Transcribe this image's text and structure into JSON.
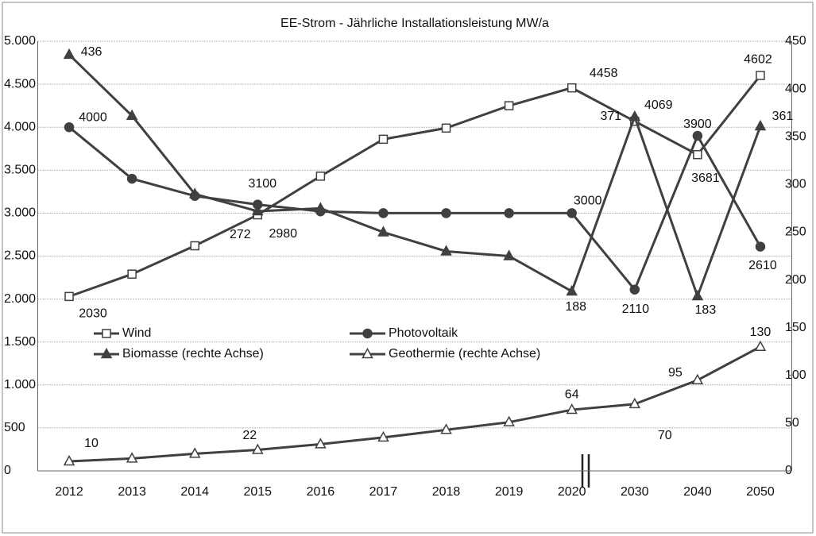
{
  "chart_data": {
    "type": "line",
    "title": "EE-Strom - Jährliche Installationsleistung  MW/a",
    "categories": [
      "2012",
      "2013",
      "2014",
      "2015",
      "2016",
      "2017",
      "2018",
      "2019",
      "2020",
      "2030",
      "2040",
      "2050"
    ],
    "ylim": [
      0,
      5000
    ],
    "yticks": [
      0,
      500,
      {
        "value": 1000,
        "label": "1.000"
      },
      {
        "value": 1500,
        "label": "1.500"
      },
      {
        "value": 2000,
        "label": "2.000"
      },
      {
        "value": 2500,
        "label": "2.500"
      },
      {
        "value": 3000,
        "label": "3.000"
      },
      {
        "value": 3500,
        "label": "3.500"
      },
      {
        "value": 4000,
        "label": "4.000"
      },
      {
        "value": 4500,
        "label": "4.500"
      },
      {
        "value": 5000,
        "label": "5.000"
      }
    ],
    "y2lim": [
      0,
      450
    ],
    "y2ticks": [
      0,
      50,
      100,
      150,
      200,
      250,
      300,
      350,
      400,
      450
    ],
    "grid": true,
    "series": [
      {
        "name": "Wind",
        "color": "#404040",
        "marker": "square",
        "filled": false,
        "values": [
          2030,
          2290,
          2620,
          2980,
          3430,
          3860,
          3990,
          4250,
          4458,
          4069,
          3681,
          4602
        ],
        "value_labels": [
          "2030",
          null,
          null,
          "2980",
          null,
          null,
          null,
          null,
          "4458",
          "4069",
          "3681",
          "4602"
        ]
      },
      {
        "name": "Photovoltaik",
        "color": "#404040",
        "marker": "circle",
        "filled": true,
        "values": [
          4000,
          3400,
          3200,
          3100,
          3020,
          3000,
          3000,
          3000,
          3000,
          2110,
          3900,
          2610
        ],
        "value_labels": [
          "4000",
          null,
          null,
          "3100",
          null,
          null,
          null,
          null,
          "3000",
          "2110",
          "3900",
          "2610"
        ]
      },
      {
        "name": "Biomasse (rechte Achse)",
        "color": "#404040",
        "marker": "triangle",
        "filled": true,
        "axis": "y2",
        "values": [
          436,
          372,
          290,
          272,
          275,
          250,
          230,
          225,
          188,
          371,
          183,
          361
        ],
        "value_labels": [
          "436",
          null,
          null,
          "272",
          null,
          null,
          null,
          null,
          "188",
          "371",
          "183",
          "361"
        ]
      },
      {
        "name": "Geothermie (rechte Achse)",
        "color": "#404040",
        "marker": "triangle",
        "filled": false,
        "axis": "y2",
        "values": [
          10,
          13,
          18,
          22,
          28,
          35,
          43,
          51,
          64,
          70,
          95,
          130
        ],
        "value_labels": [
          "10",
          null,
          null,
          "22",
          null,
          null,
          null,
          null,
          "64",
          "70",
          "95",
          "130"
        ]
      }
    ]
  }
}
